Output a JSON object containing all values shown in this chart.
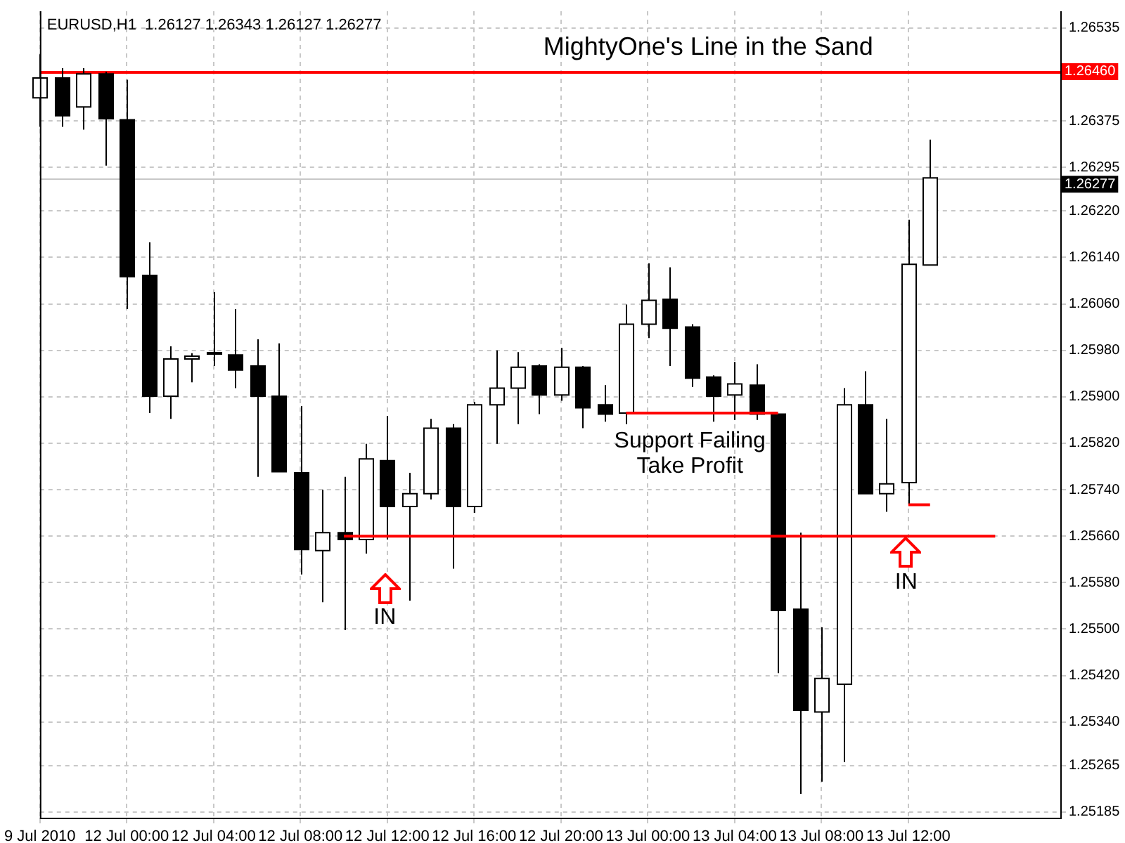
{
  "chart_data": {
    "type": "candlestick",
    "title": "MightyOne's Line in the Sand",
    "subtitle": "EURUSD,H1  1.26127 1.26343 1.26127 1.26277",
    "categories": [
      "9 Jul 2010",
      null,
      null,
      null,
      "12 Jul 00:00",
      null,
      null,
      null,
      "12 Jul 04:00",
      null,
      null,
      null,
      "12 Jul 08:00",
      null,
      null,
      null,
      "12 Jul 12:00",
      null,
      null,
      null,
      "12 Jul 16:00",
      null,
      null,
      null,
      "12 Jul 20:00",
      null,
      null,
      null,
      "13 Jul 00:00",
      null,
      null,
      null,
      "13 Jul 04:00",
      null,
      null,
      null,
      "13 Jul 08:00",
      null,
      null,
      null,
      "13 Jul 12:00",
      null,
      null,
      null,
      null,
      null,
      null,
      null
    ],
    "ohlc": [
      [
        1.26415,
        1.2649,
        1.26365,
        1.26449
      ],
      [
        1.26449,
        1.26466,
        1.26365,
        1.26384
      ],
      [
        1.26399,
        1.26466,
        1.2636,
        1.26456
      ],
      [
        1.26456,
        1.2646,
        1.26298,
        1.26379
      ],
      [
        1.26377,
        1.26446,
        1.26051,
        1.26107
      ],
      [
        1.26109,
        1.26166,
        1.25872,
        1.25901
      ],
      [
        1.25901,
        1.25987,
        1.25862,
        1.25965
      ],
      [
        1.25965,
        1.25975,
        1.25925,
        1.2597
      ],
      [
        1.25976,
        1.2608,
        1.25953,
        1.25975
      ],
      [
        1.25972,
        1.26051,
        1.25915,
        1.25946
      ],
      [
        1.25953,
        1.25999,
        1.25762,
        1.25901
      ],
      [
        1.25901,
        1.25992,
        1.25771,
        1.25771
      ],
      [
        1.25769,
        1.25884,
        1.25594,
        1.25637
      ],
      [
        1.25635,
        1.2574,
        1.25546,
        1.25666
      ],
      [
        1.25666,
        1.25762,
        1.25498,
        1.25654
      ],
      [
        1.25654,
        1.25819,
        1.2563,
        1.25793
      ],
      [
        1.2579,
        1.25867,
        1.25654,
        1.25711
      ],
      [
        1.25711,
        1.25769,
        1.25549,
        1.25733
      ],
      [
        1.25733,
        1.25862,
        1.25723,
        1.25846
      ],
      [
        1.25846,
        1.25853,
        1.25604,
        1.25711
      ],
      [
        1.25711,
        1.25891,
        1.257,
        1.25886
      ],
      [
        1.25886,
        1.2598,
        1.25819,
        1.25915
      ],
      [
        1.25915,
        1.25977,
        1.25853,
        1.25951
      ],
      [
        1.25953,
        1.25956,
        1.2587,
        1.25903
      ],
      [
        1.25903,
        1.25984,
        1.25893,
        1.25951
      ],
      [
        1.25951,
        1.25953,
        1.25846,
        1.25881
      ],
      [
        1.25886,
        1.2592,
        1.25857,
        1.2587
      ],
      [
        1.25872,
        1.26059,
        1.25853,
        1.26025
      ],
      [
        1.26025,
        1.2613,
        1.26001,
        1.26066
      ],
      [
        1.26068,
        1.26123,
        1.25953,
        1.26018
      ],
      [
        1.2602,
        1.26025,
        1.25917,
        1.25932
      ],
      [
        1.25934,
        1.25937,
        1.25857,
        1.25901
      ],
      [
        1.25903,
        1.2596,
        1.2586,
        1.25922
      ],
      [
        1.2592,
        1.25956,
        1.2586,
        1.2587
      ],
      [
        1.2587,
        1.2587,
        1.25424,
        1.25532
      ],
      [
        1.25534,
        1.25666,
        1.25216,
        1.2536
      ],
      [
        1.25357,
        1.25503,
        1.25237,
        1.25415
      ],
      [
        1.25405,
        1.25915,
        1.25271,
        1.25886
      ],
      [
        1.25886,
        1.25944,
        1.25733,
        1.25733
      ],
      [
        1.25733,
        1.25862,
        1.25702,
        1.2575
      ],
      [
        1.25752,
        1.26205,
        1.25714,
        1.26128
      ],
      [
        1.26127,
        1.26343,
        1.26127,
        1.26277
      ],
      null,
      null,
      null,
      null,
      null,
      null
    ],
    "series": [
      {
        "type": "line",
        "color": "#ff0000",
        "values": [
          null,
          null,
          null,
          null,
          null,
          null,
          null,
          null,
          null,
          null,
          null,
          null,
          null,
          null,
          1.2566,
          1.2566,
          1.2566,
          1.2566,
          1.2566,
          1.2566,
          1.2566,
          1.2566,
          1.2566,
          1.2566,
          1.2566,
          1.2566,
          1.2566,
          1.2566,
          1.2566,
          1.2566,
          1.2566,
          1.2566,
          1.2566,
          1.2566,
          1.2566,
          1.2566,
          1.2566,
          1.2566,
          1.2566,
          1.2566,
          1.2566,
          1.2566,
          1.2566,
          1.2566,
          1.2566,
          null,
          null,
          null
        ]
      },
      {
        "type": "line",
        "color": "#ff0000",
        "values": [
          null,
          null,
          null,
          null,
          null,
          null,
          null,
          null,
          null,
          null,
          null,
          null,
          null,
          null,
          null,
          null,
          null,
          null,
          null,
          null,
          null,
          null,
          null,
          null,
          null,
          null,
          null,
          1.25872,
          1.25872,
          1.25872,
          1.25872,
          1.25872,
          1.25872,
          1.25872,
          1.25872,
          null,
          null,
          null,
          null,
          null,
          null,
          null,
          null,
          null,
          null,
          null,
          null,
          null
        ]
      },
      {
        "type": "line",
        "color": "#ff0000",
        "values": [
          null,
          null,
          null,
          null,
          null,
          null,
          null,
          null,
          null,
          null,
          null,
          null,
          null,
          null,
          null,
          null,
          null,
          null,
          null,
          null,
          null,
          null,
          null,
          null,
          null,
          null,
          null,
          null,
          null,
          null,
          null,
          null,
          null,
          null,
          null,
          null,
          null,
          null,
          null,
          null,
          1.25714,
          1.25714,
          null,
          null,
          null,
          null,
          null,
          null
        ]
      }
    ],
    "ylim": [
      1.25175,
      1.26564
    ],
    "yticks": [
      {
        "value": 1.26535,
        "label": "1.26535"
      },
      {
        "value": 1.2646,
        "label": null
      },
      {
        "value": 1.26375,
        "label": "1.26375"
      },
      {
        "value": 1.26295,
        "label": "1.26295"
      },
      {
        "value": 1.2622,
        "label": "1.26220"
      },
      {
        "value": 1.2614,
        "label": "1.26140"
      },
      {
        "value": 1.2606,
        "label": "1.26060"
      },
      {
        "value": 1.2598,
        "label": "1.25980"
      },
      {
        "value": 1.259,
        "label": "1.25900"
      },
      {
        "value": 1.2582,
        "label": "1.25820"
      },
      {
        "value": 1.2574,
        "label": "1.25740"
      },
      {
        "value": 1.2566,
        "label": "1.25660"
      },
      {
        "value": 1.2558,
        "label": "1.25580"
      },
      {
        "value": 1.255,
        "label": "1.25500"
      },
      {
        "value": 1.2542,
        "label": "1.25420"
      },
      {
        "value": 1.2534,
        "label": "1.25340"
      },
      {
        "value": 1.25265,
        "label": "1.25265"
      },
      {
        "value": 1.25185,
        "label": "1.25185"
      }
    ],
    "ref_lines": [
      {
        "axis": "y",
        "value": 1.2646,
        "label": "1.26460",
        "color": "#ff0000"
      },
      {
        "axis": "y",
        "value": 1.26277,
        "label": "1.26277",
        "color": "#c8c8c8"
      }
    ],
    "annotations": [
      "IN",
      "IN",
      "Support Failing\nTake Profit"
    ],
    "grid": true,
    "legend": false,
    "marker": "none",
    "line_style": "solid"
  }
}
